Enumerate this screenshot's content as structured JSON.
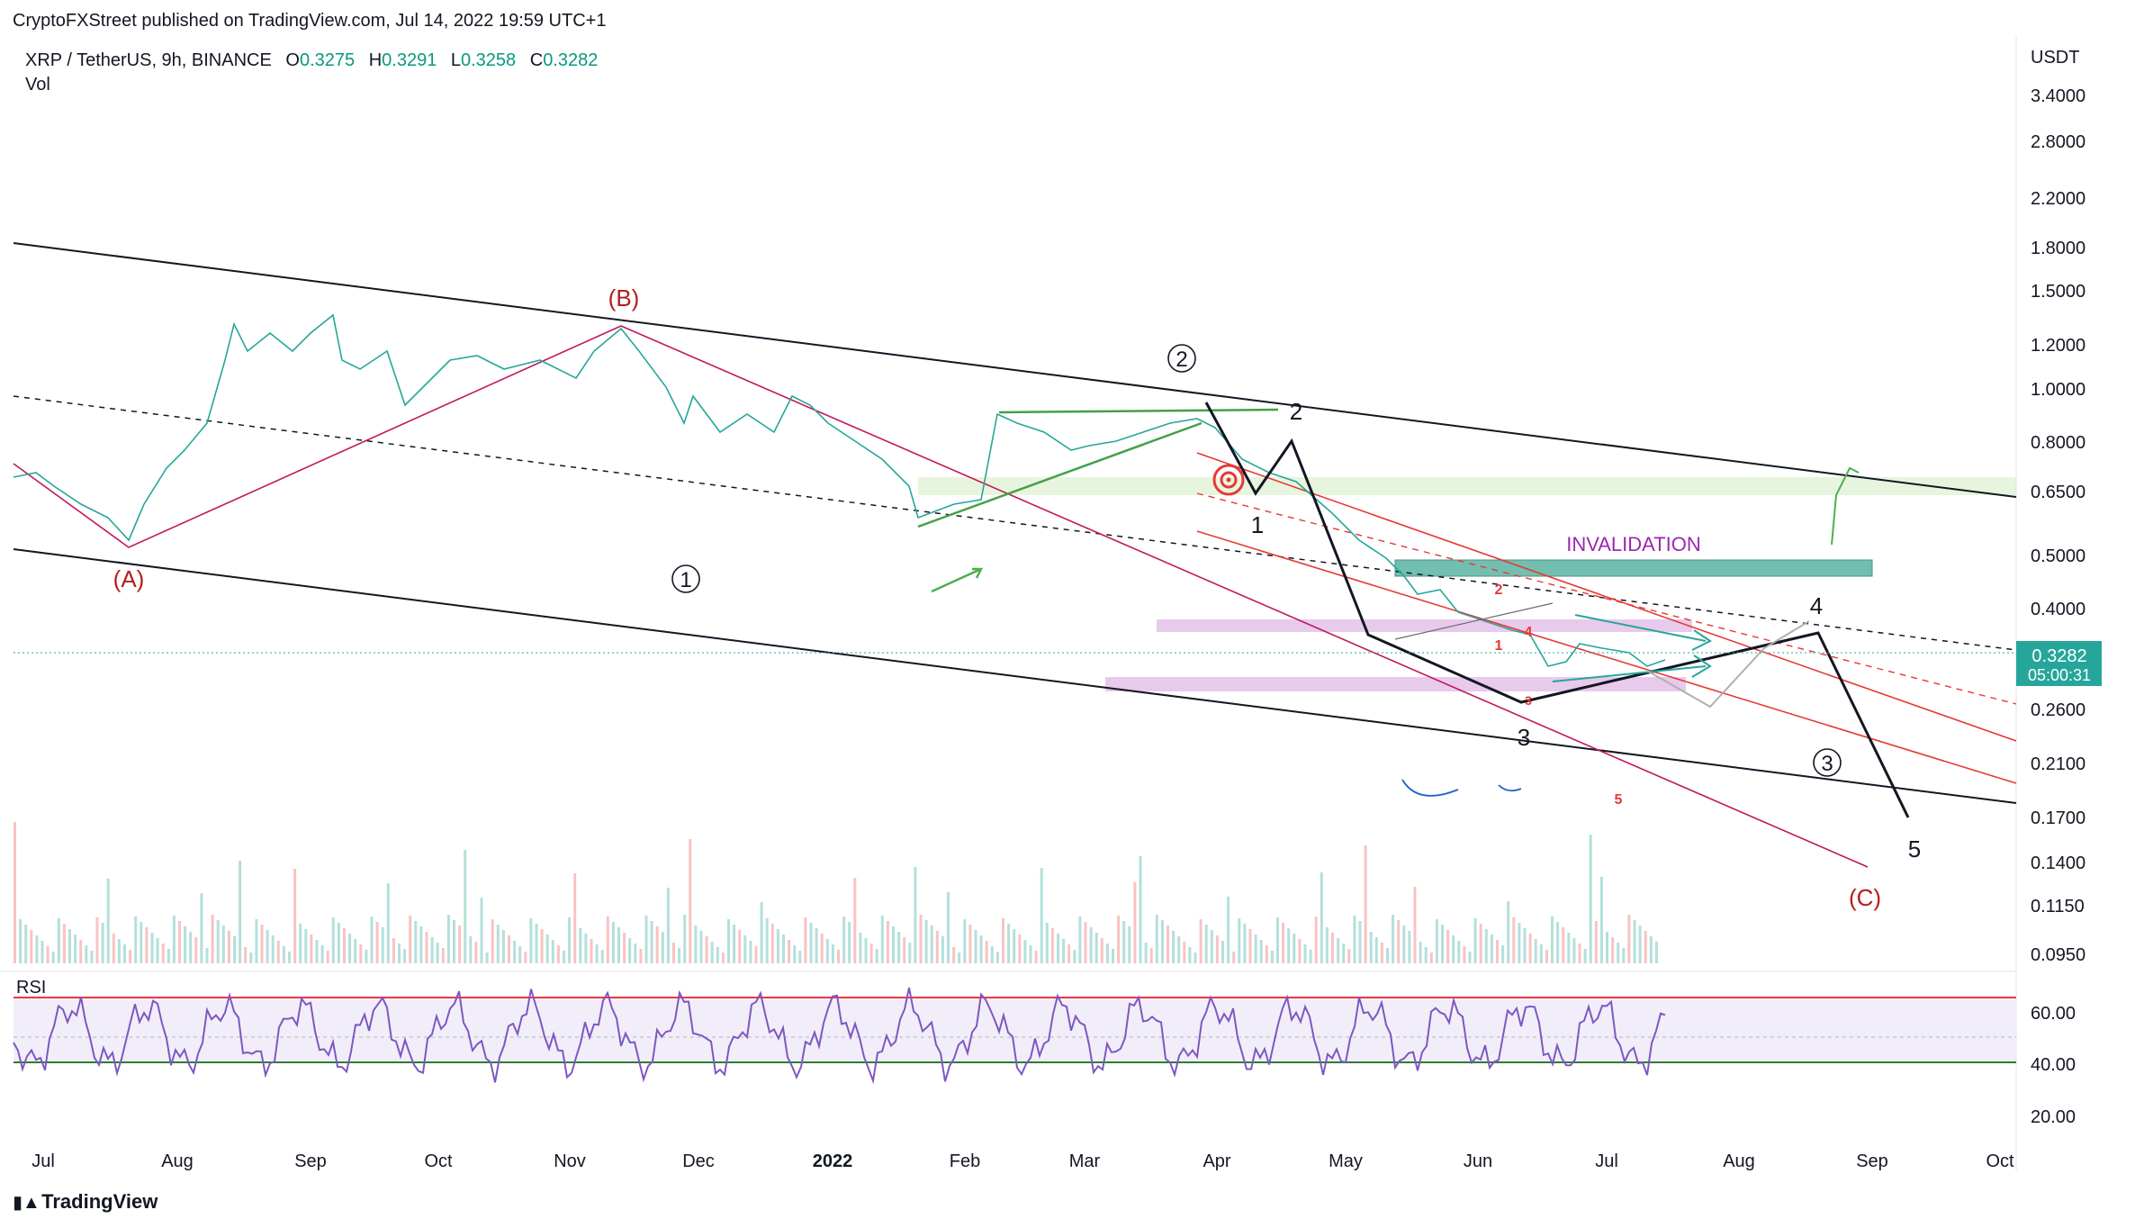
{
  "header": {
    "publisher": "CryptoFXStreet published on TradingView.com, Jul 14, 2022 19:59 UTC+1",
    "symbol": "XRP / TetherUS, 9h, BINANCE",
    "ohlc": [
      {
        "label": "O",
        "value": "0.3275"
      },
      {
        "label": "H",
        "value": "0.3291"
      },
      {
        "label": "L",
        "value": "0.3258"
      },
      {
        "label": "C",
        "value": "0.3282"
      }
    ],
    "volume_label": "Vol"
  },
  "price_axis": {
    "currency": "USDT",
    "ticks": [
      "3.4000",
      "2.8000",
      "2.2000",
      "1.8000",
      "1.5000",
      "1.2000",
      "1.0000",
      "0.8000",
      "0.6500",
      "0.5000",
      "0.4000",
      "0.2600",
      "0.2100",
      "0.1700",
      "0.1400",
      "0.1150",
      "0.0950"
    ],
    "last_price": "0.3282",
    "countdown": "05:00:31"
  },
  "rsi_panel": {
    "label": "RSI",
    "ticks": [
      "60.00",
      "40.00",
      "20.00"
    ]
  },
  "time_axis": [
    "Jul",
    "Aug",
    "Sep",
    "Oct",
    "Nov",
    "Dec",
    "2022",
    "Feb",
    "Mar",
    "Apr",
    "May",
    "Jun",
    "Jul",
    "Aug",
    "Sep",
    "Oct"
  ],
  "annotations": {
    "wave_A": "(A)",
    "wave_B": "(B)",
    "wave_C": "(C)",
    "circle_1": "1",
    "circle_2": "2",
    "circle_3": "3",
    "wave_1": "1",
    "wave_2": "2",
    "wave_3": "3",
    "wave_4": "4",
    "wave_5": "5",
    "invalidation": "INVALIDATION",
    "small_1": "1",
    "small_2": "2",
    "small_3": "3",
    "small_4": "4",
    "small_5": "5"
  },
  "branding": "TradingView",
  "colors": {
    "up": "#26a69a",
    "down": "#ef5350",
    "accent_red": "#b71c1c",
    "rsi_line": "#7e57c2",
    "rsi_upper": "#f23645",
    "rsi_lower": "#2e7d32",
    "invalidation": "#9c27b0",
    "last_price_bg": "#26a69a"
  },
  "chart_data": {
    "type": "line",
    "title": "XRP / TetherUS, 9h, BINANCE",
    "x": [
      "Jul",
      "Aug",
      "Sep",
      "Oct",
      "Nov",
      "Dec",
      "2022",
      "Feb",
      "Mar",
      "Apr",
      "May",
      "Jun",
      "Jul"
    ],
    "series": [
      {
        "values": [
          0.6,
          0.7,
          1.2,
          1.0,
          1.15,
          0.95,
          0.8,
          0.62,
          0.78,
          0.82,
          0.62,
          0.4,
          0.33
        ]
      }
    ],
    "yscale": "log",
    "ylim": [
      0.095,
      3.4
    ],
    "last_value": 0.3282,
    "rsi": {
      "ylim": [
        20,
        60
      ],
      "upper": 65,
      "lower": 40
    }
  }
}
